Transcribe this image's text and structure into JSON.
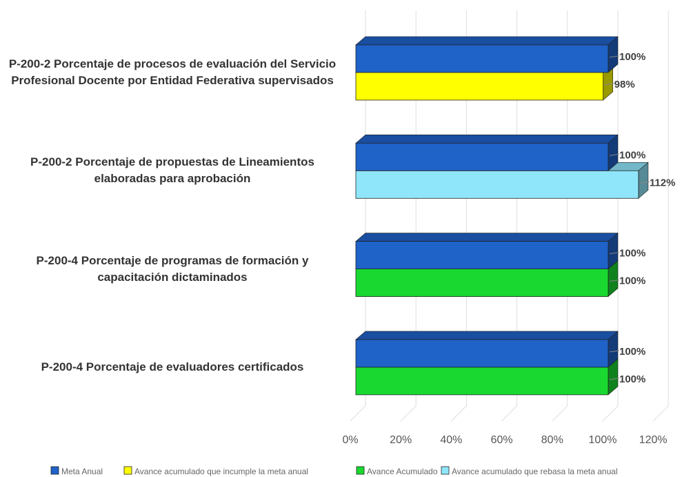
{
  "chart_data": {
    "type": "bar3d_horizontal",
    "categories": [
      "P-200-2 Porcentaje de procesos de evaluación del Servicio Profesional Docente por Entidad Federativa supervisados",
      "P-200-2 Porcentaje de propuestas de Lineamientos elaboradas para aprobación",
      "P-200-4 Porcentaje de programas de formación y capacitación dictaminados",
      "P-200-4 Porcentaje de evaluadores certificados"
    ],
    "series": [
      {
        "color": "#1f62c8",
        "values": [
          100,
          100,
          100,
          100
        ],
        "value_labels": [
          "100%",
          "100%",
          "100%",
          "100%"
        ]
      },
      {
        "colors": [
          "#ffff00",
          "#8fe6fa",
          "#19d930",
          "#19d930"
        ],
        "values": [
          98,
          112,
          100,
          100
        ],
        "value_labels": [
          "98%",
          "112%",
          "100%",
          "100%"
        ]
      }
    ],
    "legend": [
      {
        "name": "Meta Anual",
        "color": "#1f62c8"
      },
      {
        "name": "Avance acumulado que incumple la meta anual",
        "color": "#ffff00"
      },
      {
        "name": "Avance Acumulado",
        "color": "#19d930"
      },
      {
        "name": "Avance acumulado que rebasa la meta anual",
        "color": "#8fe6fa"
      }
    ],
    "xlim": [
      0,
      120
    ],
    "xticks": [
      {
        "value": 0,
        "label": "0%"
      },
      {
        "value": 20,
        "label": "20%"
      },
      {
        "value": 40,
        "label": "40%"
      },
      {
        "value": 60,
        "label": "60%"
      },
      {
        "value": 80,
        "label": "80%"
      },
      {
        "value": 100,
        "label": "100%"
      },
      {
        "value": 120,
        "label": "120%"
      }
    ],
    "grid": true
  }
}
